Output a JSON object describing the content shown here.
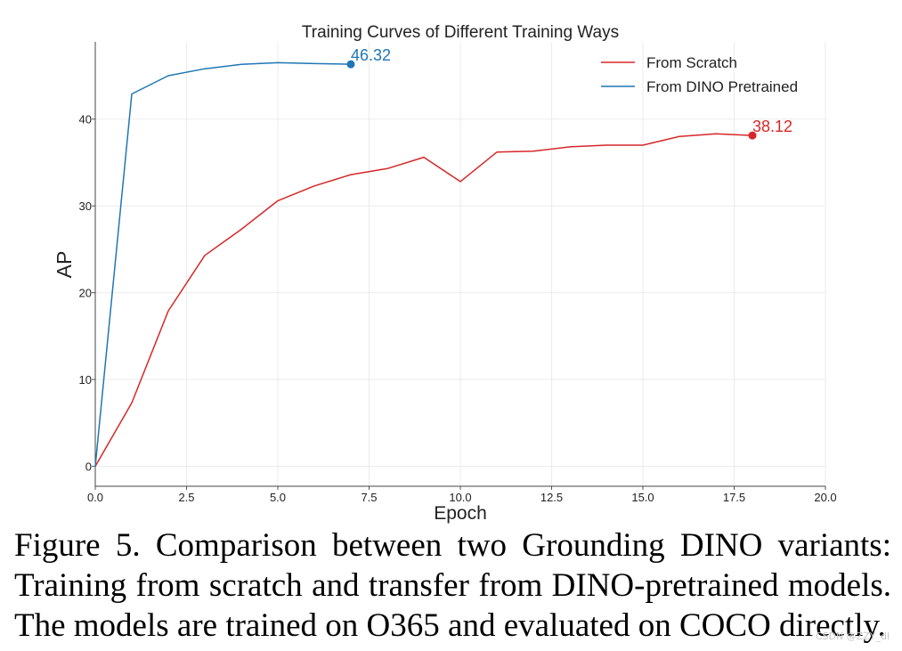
{
  "chart_data": {
    "type": "line",
    "title": "Training Curves of Different Training Ways",
    "xlabel": "Epoch",
    "ylabel": "AP",
    "xlim": [
      0,
      20
    ],
    "ylim": [
      -2.3,
      48.9
    ],
    "xticks": [
      "0.0",
      "2.5",
      "5.0",
      "7.5",
      "10.0",
      "12.5",
      "15.0",
      "17.5",
      "20.0"
    ],
    "yticks": [
      "0",
      "10",
      "20",
      "30",
      "40"
    ],
    "grid": true,
    "legend_position": "top-right",
    "series": [
      {
        "name": "From Scratch",
        "color": "#d62728",
        "x": [
          0,
          1,
          2,
          3,
          4,
          5,
          6,
          7,
          8,
          9,
          10,
          11,
          12,
          13,
          14,
          15,
          16,
          17,
          18
        ],
        "values": [
          0,
          7.3,
          17.9,
          24.3,
          27.3,
          30.6,
          32.3,
          33.6,
          34.3,
          35.6,
          32.8,
          36.2,
          36.3,
          36.8,
          37.0,
          37.0,
          38.0,
          38.3,
          38.12
        ],
        "final_label": "38.12"
      },
      {
        "name": "From DINO Pretrained",
        "color": "#1f77b4",
        "x": [
          0,
          1,
          2,
          3,
          4,
          5,
          6,
          7
        ],
        "values": [
          0,
          42.9,
          45.0,
          45.8,
          46.3,
          46.5,
          46.4,
          46.32
        ],
        "final_label": "46.32"
      }
    ]
  },
  "caption": "Figure 5.  Comparison between two Grounding DINO variants: Training from scratch and transfer from DINO-pretrained models. The models are trained on O365 and evaluated on COCO directly.",
  "watermark": "CSDN @ZZY_dl"
}
